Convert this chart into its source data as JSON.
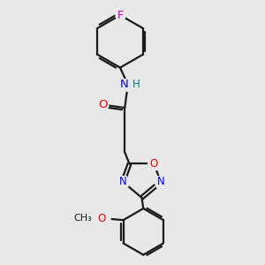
{
  "bg_color": "#e8e8e8",
  "bond_color": "#1a1a1a",
  "N_color": "#0000ff",
  "O_color": "#ff0000",
  "F_color": "#cc00cc",
  "H_color": "#008080",
  "lw": 1.6,
  "fs": 8.5,
  "fig_w": 3.0,
  "fig_h": 3.0,
  "dpi": 100,
  "xlim": [
    -2.5,
    3.5
  ],
  "ylim": [
    -4.5,
    4.0
  ]
}
